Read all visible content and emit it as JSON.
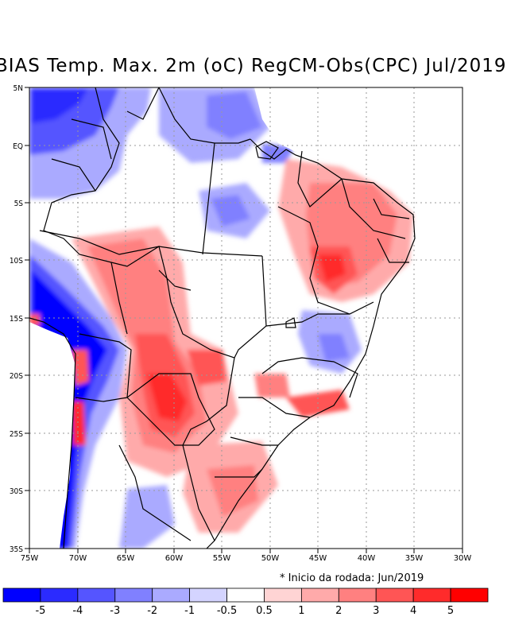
{
  "title": "BIAS Temp. Max. 2m (oC) RegCM-Obs(CPC) Jul/2019",
  "axis": {
    "lat_labels": [
      "5N",
      "EQ",
      "5S",
      "10S",
      "15S",
      "20S",
      "25S",
      "30S",
      "35S"
    ],
    "lon_labels": [
      "75W",
      "70W",
      "65W",
      "60W",
      "55W",
      "50W",
      "45W",
      "40W",
      "35W",
      "30W"
    ]
  },
  "note": "* Inicio da rodada: Jun/2019",
  "colorbar": {
    "colors": [
      "#0000ff",
      "#2b2bff",
      "#5555ff",
      "#8080ff",
      "#aaaaff",
      "#d4d4ff",
      "#ffffff",
      "#ffd4d4",
      "#ffaaaa",
      "#ff8080",
      "#ff5555",
      "#ff2b2b",
      "#ff0000"
    ],
    "tick_labels": [
      "-5",
      "-4",
      "-3",
      "-2",
      "-1",
      "-0.5",
      "0.5",
      "1",
      "2",
      "3",
      "4",
      "5"
    ]
  },
  "colors": {
    "cold_strong": "#0000ff",
    "cold_mid": "#5555ff",
    "cold_light": "#aaaaff",
    "warm_light": "#ffaaaa",
    "warm_mid": "#ff5555",
    "warm_strong": "#ff0000"
  }
}
